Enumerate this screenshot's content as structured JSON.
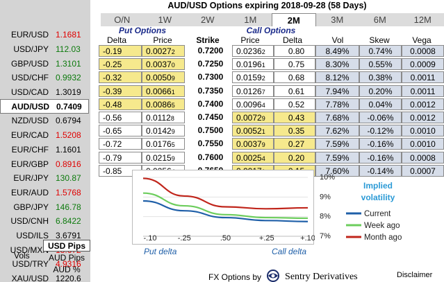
{
  "header": {
    "title": "AUD/USD Options expiring 2018-09-28 (58 Days)"
  },
  "tabs": [
    "O/N",
    "1W",
    "2W",
    "1M",
    "2M",
    "3M",
    "6M",
    "12M"
  ],
  "active_tab": "2M",
  "sidebar": {
    "pairs": [
      {
        "pair": "EUR/USD",
        "rate": "1.1681",
        "color": "red"
      },
      {
        "pair": "USD/JPY",
        "rate": "112.03",
        "color": "green"
      },
      {
        "pair": "GBP/USD",
        "rate": "1.3101",
        "color": "green"
      },
      {
        "pair": "USD/CHF",
        "rate": "0.9932",
        "color": "green"
      },
      {
        "pair": "USD/CAD",
        "rate": "1.3019",
        "color": "black"
      },
      {
        "pair": "AUD/USD",
        "rate": "0.7409",
        "color": "black",
        "active": true
      },
      {
        "pair": "NZD/USD",
        "rate": "0.6794",
        "color": "black"
      },
      {
        "pair": "EUR/CAD",
        "rate": "1.5208",
        "color": "red"
      },
      {
        "pair": "EUR/CHF",
        "rate": "1.1601",
        "color": "black"
      },
      {
        "pair": "EUR/GBP",
        "rate": "0.8916",
        "color": "red"
      },
      {
        "pair": "EUR/JPY",
        "rate": "130.87",
        "color": "green"
      },
      {
        "pair": "EUR/AUD",
        "rate": "1.5768",
        "color": "red"
      },
      {
        "pair": "GBP/JPY",
        "rate": "146.78",
        "color": "green"
      },
      {
        "pair": "USD/CNH",
        "rate": "6.8422",
        "color": "green"
      },
      {
        "pair": "USD/ILS",
        "rate": "3.6791",
        "color": "black"
      },
      {
        "pair": "USD/MXN",
        "rate": "18.672",
        "color": "red"
      },
      {
        "pair": "USD/TRY",
        "rate": "4.9316",
        "color": "red"
      },
      {
        "pair": "XAU/USD",
        "rate": "1220.6",
        "color": "black"
      }
    ],
    "vols_label": "Vols",
    "units": [
      "USD Pips",
      "AUD Pips",
      "AUD %"
    ],
    "active_unit": "USD Pips"
  },
  "table": {
    "put_header": "Put Options",
    "call_header": "Call Options",
    "columns": {
      "put_delta": "Delta",
      "put_price": "Price",
      "strike": "Strike",
      "call_price": "Price",
      "call_delta": "Delta",
      "vol": "Vol",
      "skew": "Skew",
      "vega": "Vega"
    },
    "rows": [
      {
        "put_delta": "-0.19",
        "put_price": "0.0027",
        "put_price_sub": "2",
        "strike": "0.7200",
        "call_price": "0.0236",
        "call_price_sub": "2",
        "call_delta": "0.80",
        "vol": "8.49%",
        "skew": "0.74%",
        "vega": "0.0008"
      },
      {
        "put_delta": "-0.25",
        "put_price": "0.0037",
        "put_price_sub": "0",
        "strike": "0.7250",
        "call_price": "0.0196",
        "call_price_sub": "1",
        "call_delta": "0.75",
        "vol": "8.30%",
        "skew": "0.55%",
        "vega": "0.0009"
      },
      {
        "put_delta": "-0.32",
        "put_price": "0.0050",
        "put_price_sub": "9",
        "strike": "0.7300",
        "call_price": "0.0159",
        "call_price_sub": "2",
        "call_delta": "0.68",
        "vol": "8.12%",
        "skew": "0.38%",
        "vega": "0.0011"
      },
      {
        "put_delta": "-0.39",
        "put_price": "0.0066",
        "put_price_sub": "1",
        "strike": "0.7350",
        "call_price": "0.0126",
        "call_price_sub": "7",
        "call_delta": "0.61",
        "vol": "7.94%",
        "skew": "0.20%",
        "vega": "0.0011"
      },
      {
        "put_delta": "-0.48",
        "put_price": "0.0086",
        "put_price_sub": "5",
        "strike": "0.7400",
        "call_price": "0.0096",
        "call_price_sub": "4",
        "call_delta": "0.52",
        "vol": "7.78%",
        "skew": "0.04%",
        "vega": "0.0012"
      },
      {
        "put_delta": "-0.56",
        "put_price": "0.0112",
        "put_price_sub": "8",
        "strike": "0.7450",
        "call_price": "0.0072",
        "call_price_sub": "9",
        "call_delta": "0.43",
        "vol": "7.68%",
        "skew": "-0.06%",
        "vega": "0.0012"
      },
      {
        "put_delta": "-0.65",
        "put_price": "0.0142",
        "put_price_sub": "9",
        "strike": "0.7500",
        "call_price": "0.0052",
        "call_price_sub": "1",
        "call_delta": "0.35",
        "vol": "7.62%",
        "skew": "-0.12%",
        "vega": "0.0010"
      },
      {
        "put_delta": "-0.72",
        "put_price": "0.0176",
        "put_price_sub": "5",
        "strike": "0.7550",
        "call_price": "0.0037",
        "call_price_sub": "9",
        "call_delta": "0.27",
        "vol": "7.59%",
        "skew": "-0.16%",
        "vega": "0.0010"
      },
      {
        "put_delta": "-0.79",
        "put_price": "0.0215",
        "put_price_sub": "9",
        "strike": "0.7600",
        "call_price": "0.0025",
        "call_price_sub": "4",
        "call_delta": "0.20",
        "vol": "7.59%",
        "skew": "-0.16%",
        "vega": "0.0008"
      },
      {
        "put_delta": "-0.85",
        "put_price": "0.0256",
        "put_price_sub": "4",
        "strike": "0.7650",
        "call_price": "0.0017",
        "call_price_sub": "1",
        "call_delta": "0.15",
        "vol": "7.60%",
        "skew": "-0.14%",
        "vega": "0.0007"
      }
    ],
    "itm_put_rows": 5,
    "itm_call_rows_from": 5
  },
  "chart_data": {
    "type": "line",
    "title": "Implied volatility",
    "x_ticks": [
      "-.10",
      "-.25",
      ".50",
      "+.25",
      "+.10"
    ],
    "x_axis_left_label": "Put delta",
    "x_axis_right_label": "Call delta",
    "y_ticks": [
      "10%",
      "9%",
      "8%",
      "7%"
    ],
    "ylim": [
      7,
      10
    ],
    "legend_placement": "right",
    "series": [
      {
        "name": "Current",
        "color": "#1f5fa8",
        "values": [
          8.8,
          8.3,
          7.95,
          7.8,
          7.75
        ]
      },
      {
        "name": "Week ago",
        "color": "#6ccd5c",
        "values": [
          9.2,
          8.55,
          8.1,
          7.95,
          7.92
        ]
      },
      {
        "name": "Month ago",
        "color": "#c0251b",
        "values": [
          9.95,
          9.05,
          8.5,
          8.4,
          8.45
        ]
      }
    ]
  },
  "footer": {
    "prefix": "FX Options by",
    "brand": "Sentry Derivatives",
    "disclaimer": "Disclaimer"
  }
}
